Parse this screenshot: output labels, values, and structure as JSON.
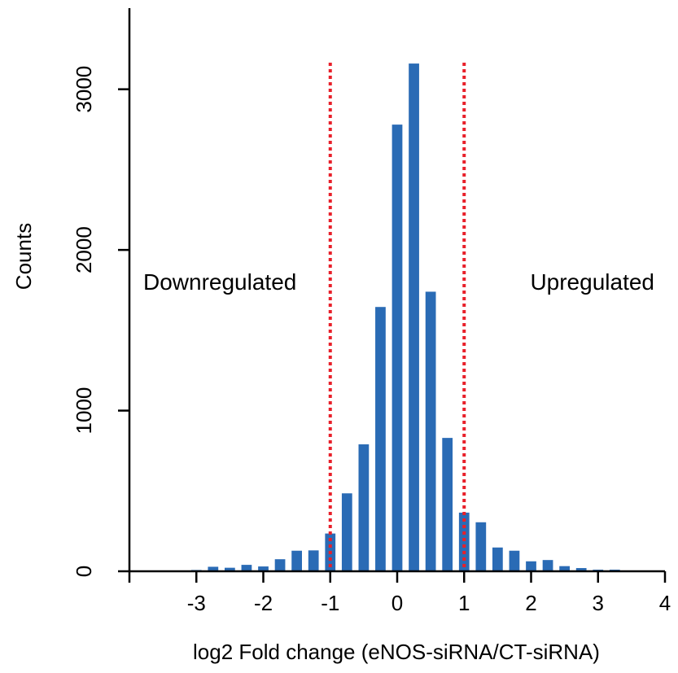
{
  "chart_data": {
    "type": "bar",
    "xlabel": "log2 Fold change (eNOS-siRNA/CT-siRNA)",
    "ylabel": "Counts",
    "xlim": [
      -4,
      4
    ],
    "ylim": [
      0,
      3500
    ],
    "xticks": [
      -3,
      -2,
      -1,
      0,
      1,
      2,
      3,
      4
    ],
    "yticks": [
      0,
      1000,
      2000,
      3000
    ],
    "bin_width": 0.25,
    "bar_color": "#2a6bb5",
    "threshold_color": "#e8202a",
    "grid": false,
    "legend": "none",
    "x": [
      -3.0,
      -2.75,
      -2.5,
      -2.25,
      -2.0,
      -1.75,
      -1.5,
      -1.25,
      -1.0,
      -0.75,
      -0.5,
      -0.25,
      0.0,
      0.25,
      0.5,
      0.75,
      1.0,
      1.25,
      1.5,
      1.75,
      2.0,
      2.25,
      2.5,
      2.75,
      3.0,
      3.25
    ],
    "values": [
      8,
      28,
      22,
      40,
      30,
      75,
      128,
      130,
      235,
      485,
      790,
      1645,
      2780,
      3160,
      1740,
      830,
      365,
      305,
      148,
      128,
      62,
      70,
      32,
      20,
      10,
      10
    ],
    "thresholds": [
      -1,
      1
    ],
    "annotations": [
      "Downregulated",
      "Upregulated"
    ]
  }
}
